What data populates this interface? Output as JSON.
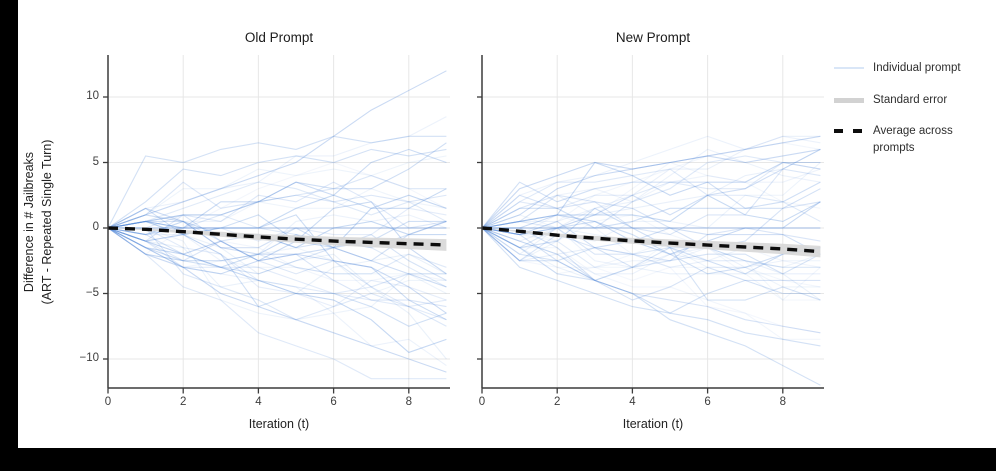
{
  "figure": {
    "ylabel_lines": [
      "Difference in # Jailbreaks",
      "(ART - Repeated Single Turn)"
    ]
  },
  "legend": {
    "items": [
      {
        "label": "Individual prompt",
        "swatch": "thin-blue-line"
      },
      {
        "label": "Standard error",
        "swatch": "thick-gray-line"
      },
      {
        "label": "Average across prompts",
        "swatch": "black-dashed-line"
      }
    ]
  },
  "colors": {
    "individual_line": "#4f86d8",
    "standard_error_band": "#d7d7d7",
    "average_line": "#0d0d0d",
    "gridline": "#e7e7e7",
    "axis": "#3c3c3c",
    "tick_text": "#3d3d3d",
    "legend_blue_swatch": "#d9e6f7",
    "frame": "#000000"
  },
  "chart_data": [
    {
      "type": "line",
      "title": "Old Prompt",
      "xlabel": "Iteration (t)",
      "ylabel": "Difference in # Jailbreaks (ART - Repeated Single Turn)",
      "x": [
        0,
        1,
        2,
        3,
        4,
        5,
        6,
        7,
        8,
        9
      ],
      "xticks": [
        0,
        2,
        4,
        6,
        8
      ],
      "yticks": [
        -10,
        -5,
        0,
        5,
        10
      ],
      "xlim": [
        0,
        9.1
      ],
      "ylim": [
        -12.3,
        13.2
      ],
      "grid": true,
      "series": [
        {
          "name": "Average across prompts",
          "values": [
            0,
            -0.1,
            -0.28,
            -0.48,
            -0.68,
            -0.85,
            -1.0,
            -1.1,
            -1.2,
            -1.3
          ]
        },
        {
          "name": "Standard error half-width",
          "values": [
            0,
            0.07,
            0.13,
            0.19,
            0.24,
            0.29,
            0.33,
            0.37,
            0.41,
            0.45
          ]
        }
      ],
      "individual_lines": {
        "count": 46,
        "seed": 101,
        "y_min": -11.5,
        "y_max": 12.2,
        "note": "translucent blue per-prompt trajectories starting at 0, unlabeled in figure",
        "forced": [
          [
            0,
            1,
            2,
            3,
            4,
            5,
            7,
            9,
            10.5,
            12
          ],
          [
            0,
            0,
            0,
            0,
            0,
            0,
            0,
            0,
            0,
            0
          ],
          [
            0,
            5.5,
            5,
            6,
            6.5,
            6,
            7,
            6.5,
            7,
            7
          ],
          [
            0,
            -2,
            -3,
            -5,
            -6,
            -7,
            -8,
            -9,
            -10,
            -11
          ],
          [
            0,
            2,
            4.5,
            4,
            5,
            5.5,
            5,
            6,
            5.5,
            6
          ]
        ]
      }
    },
    {
      "type": "line",
      "title": "New Prompt",
      "xlabel": "Iteration (t)",
      "ylabel": "Difference in # Jailbreaks (ART - Repeated Single Turn)",
      "x": [
        0,
        1,
        2,
        3,
        4,
        5,
        6,
        7,
        8,
        9
      ],
      "xticks": [
        0,
        2,
        4,
        6,
        8
      ],
      "yticks": [
        -10,
        -5,
        0,
        5,
        10
      ],
      "xlim": [
        0,
        9.1
      ],
      "ylim": [
        -12.3,
        13.2
      ],
      "grid": true,
      "series": [
        {
          "name": "Average across prompts",
          "values": [
            0,
            -0.25,
            -0.55,
            -0.78,
            -0.98,
            -1.15,
            -1.3,
            -1.45,
            -1.6,
            -1.8
          ]
        },
        {
          "name": "Standard error half-width",
          "values": [
            0,
            0.07,
            0.13,
            0.18,
            0.23,
            0.28,
            0.32,
            0.36,
            0.4,
            0.44
          ]
        }
      ],
      "individual_lines": {
        "count": 46,
        "seed": 202,
        "y_min": -12.2,
        "y_max": 7.2,
        "note": "translucent blue per-prompt trajectories starting at 0, unlabeled in figure",
        "forced": [
          [
            0,
            1,
            3,
            4,
            4.5,
            5,
            5.5,
            6,
            6.5,
            7
          ],
          [
            0,
            0,
            0,
            0,
            0,
            0,
            0,
            0,
            0,
            0
          ],
          [
            0,
            -1,
            -2,
            -4,
            -5,
            -7,
            -8,
            -9,
            -10.5,
            -12
          ],
          [
            0,
            3,
            4,
            5,
            4.5,
            5,
            5.5,
            5,
            5.5,
            6
          ],
          [
            0,
            -3,
            -4,
            -5,
            -6,
            -6.5,
            -7,
            -8,
            -8.5,
            -9
          ]
        ]
      }
    }
  ]
}
